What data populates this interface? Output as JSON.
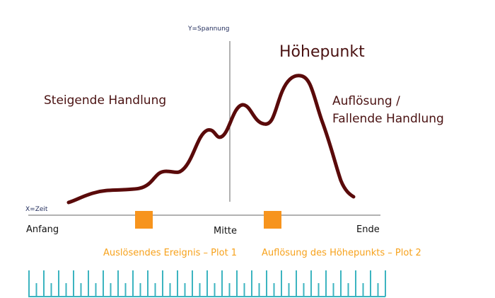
{
  "diagram": {
    "y_axis_label": "Y=Spannung",
    "x_axis_label": "X=Zeit",
    "climax": "Höhepunkt",
    "rising": "Steigende Handlung",
    "falling": [
      "Auflösung /",
      "Fallende Handlung"
    ],
    "start": "Anfang",
    "middle": "Mitte",
    "end": "Ende",
    "plot_points": [
      "Auslösendes Ereignis – Plot 1",
      "Auflösung des Höhepunkts – Plot 2"
    ]
  }
}
